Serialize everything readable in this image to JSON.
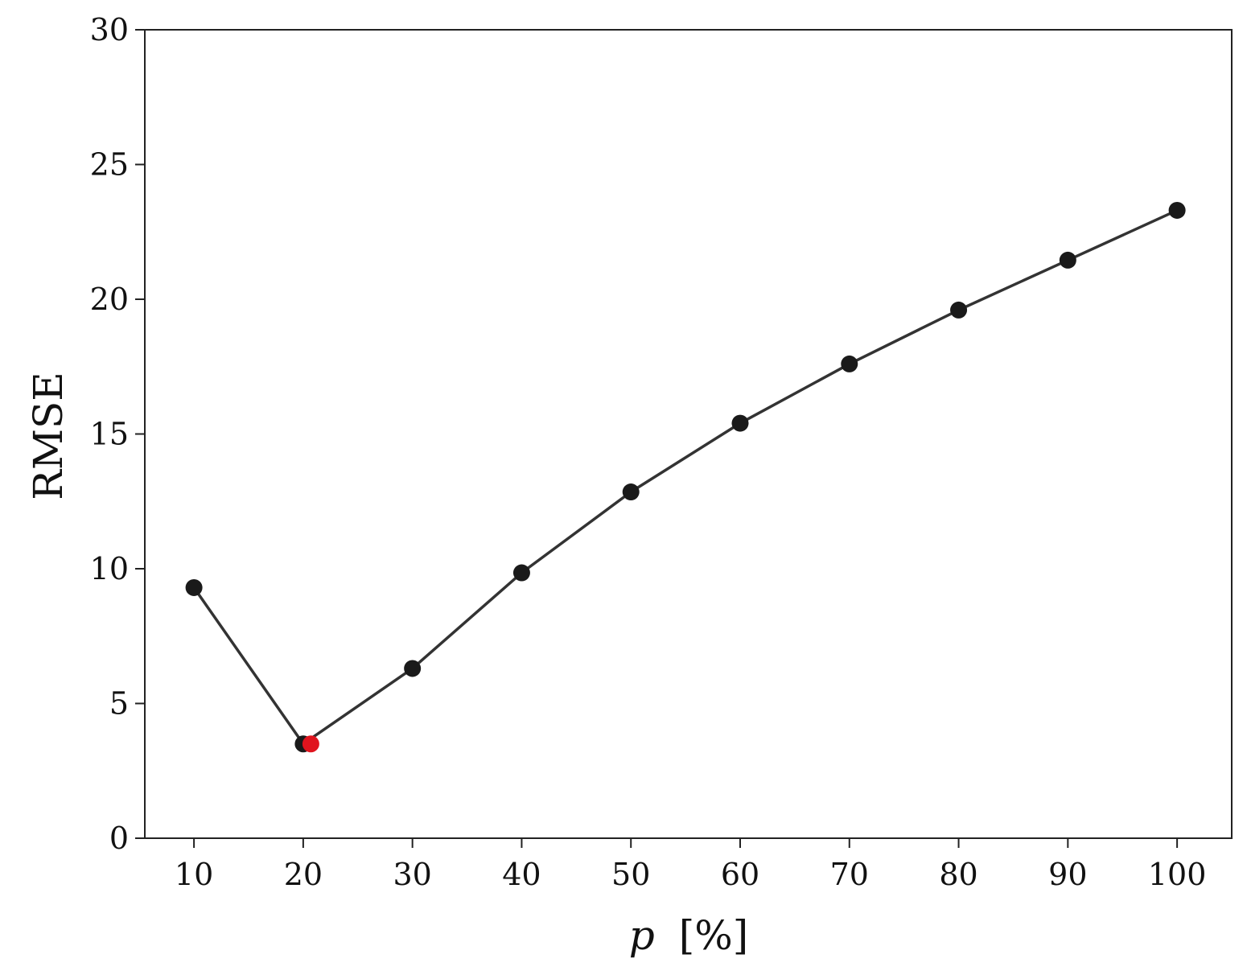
{
  "chart_data": {
    "type": "line",
    "title": "",
    "xlabel_var": "p",
    "xlabel_unit": "[%]",
    "ylabel": "RMSE",
    "xlim": [
      5.5,
      105
    ],
    "ylim": [
      0,
      30
    ],
    "x_ticks": [
      10,
      20,
      30,
      40,
      50,
      60,
      70,
      80,
      90,
      100
    ],
    "y_ticks": [
      0,
      5,
      10,
      15,
      20,
      25,
      30
    ],
    "grid": false,
    "series": [
      {
        "x": [
          10,
          20,
          30,
          40,
          50,
          60,
          70,
          80,
          90,
          100
        ],
        "values": [
          9.3,
          3.5,
          6.3,
          9.85,
          12.85,
          15.4,
          17.6,
          19.6,
          21.45,
          23.3
        ],
        "color": "#1a1a1a",
        "marker": "circle"
      }
    ],
    "highlight": {
      "x": 20.7,
      "y": 3.5,
      "color": "#e0141e"
    }
  }
}
